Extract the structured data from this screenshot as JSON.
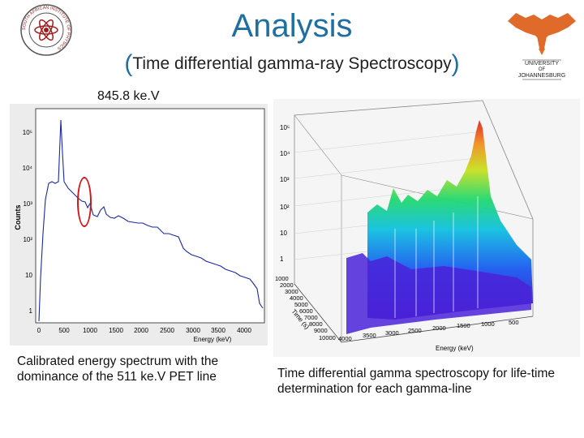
{
  "slide": {
    "title": "Analysis",
    "subtitle_open": "(",
    "subtitle_text": "Time differential gamma-ray Spectroscopy",
    "subtitle_close": ")",
    "peak_label": "845.8 ke.V"
  },
  "logos": {
    "left": {
      "ring_text": "SOUTH AFRICAN INSTITUTE OF PHYSICS"
    },
    "right": {
      "line1": "UNIVERSITY",
      "line2": "OF",
      "line3": "JOHANNESBURG"
    }
  },
  "spectrum": {
    "ylabel": "Counts",
    "xlabel": "Energy (keV)",
    "yticks": [
      "10⁵",
      "10⁴",
      "10³",
      "10²",
      "10",
      "1"
    ],
    "xticks": [
      "0",
      "500",
      "1000",
      "1500",
      "2000",
      "2500",
      "3000",
      "3500",
      "4000"
    ]
  },
  "surface": {
    "zticks": [
      "10⁵",
      "10⁴",
      "10³",
      "10²",
      "10",
      "1"
    ],
    "time_ticks": [
      "1000",
      "2000",
      "3000",
      "4000",
      "5000",
      "6000",
      "7000",
      "8000",
      "9000",
      "10000"
    ],
    "time_label": "Time (s)",
    "energy_ticks": [
      "4000",
      "3500",
      "3000",
      "2500",
      "2000",
      "1500",
      "1000",
      "500"
    ],
    "energy_label": "Energy (keV)"
  },
  "captions": {
    "left": "Calibrated energy spectrum with the dominance of the 511 ke.V PET line",
    "right": "Time differential gamma spectroscopy for life-time determination for each gamma-line"
  },
  "colors": {
    "title": "#1f6fa3",
    "arrow": "#2e86c1",
    "spectrum_line": "#1a2aa0",
    "highlight": "#d01818"
  }
}
